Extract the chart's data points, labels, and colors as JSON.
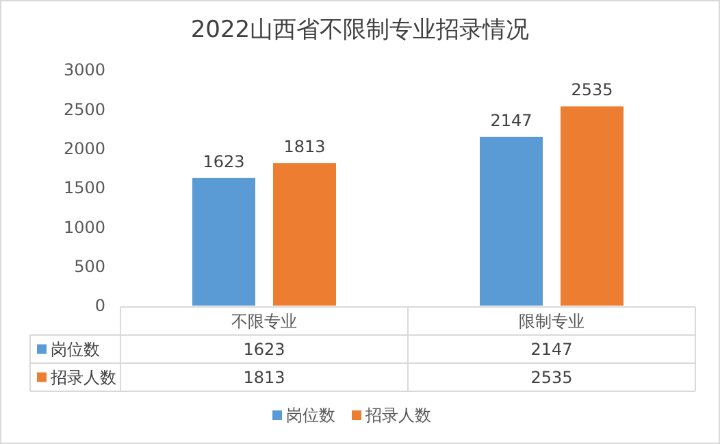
{
  "chart_data": {
    "type": "bar",
    "title": "2022山西省不限制专业招录情况",
    "categories": [
      "不限专业",
      "限制专业"
    ],
    "series": [
      {
        "name": "岗位数",
        "color": "#5b9bd5",
        "values": [
          1623,
          2147
        ],
        "value_labels": [
          "1623",
          "2147"
        ]
      },
      {
        "name": "招录人数",
        "color": "#ed7d31",
        "values": [
          1813,
          2535
        ],
        "value_labels": [
          "1813",
          "2535"
        ]
      }
    ],
    "ylim": [
      0,
      3000
    ],
    "yticks": [
      0,
      500,
      1000,
      1500,
      2000,
      2500,
      3000
    ],
    "grid": false,
    "legend": "bottom",
    "annotations": [
      "1623",
      "2147",
      "1813",
      "2535"
    ]
  }
}
